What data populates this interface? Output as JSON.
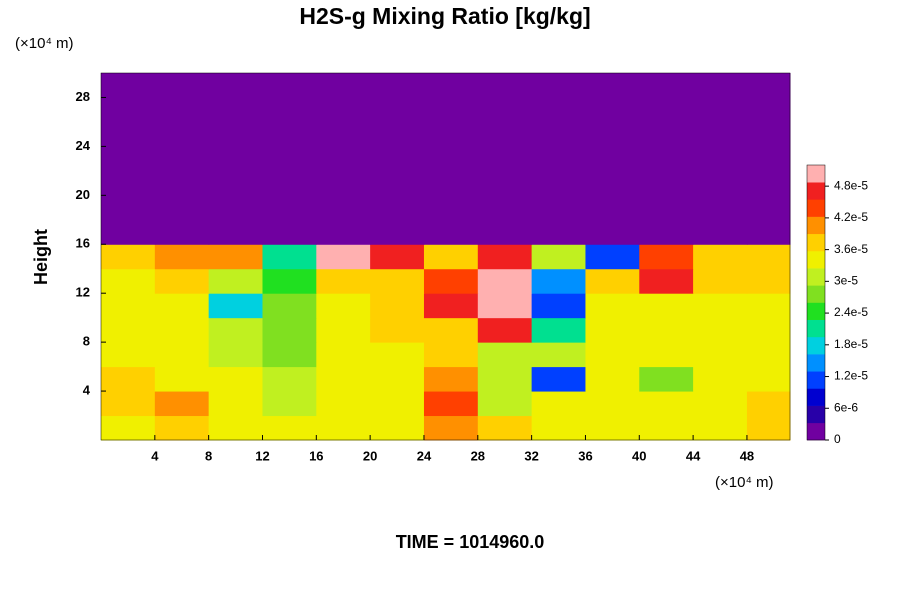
{
  "chart_data": {
    "type": "contour",
    "title": "H2S-g Mixing Ratio [kg/kg]",
    "y_unit_label": "(×10⁴ m)",
    "x_unit_label": "(×10⁴ m)",
    "ylabel": "Height",
    "footer": "TIME = 1014960.0",
    "x_edges": [
      0,
      4,
      8,
      12,
      16,
      20,
      24,
      28,
      32,
      36,
      40,
      44,
      48,
      51.2
    ],
    "y_edges": [
      0,
      2,
      4,
      6,
      8,
      10,
      12,
      14,
      16,
      30
    ],
    "values": [
      [
        3.4e-05,
        3.8e-05,
        3.5e-05,
        3.3e-05,
        3.4e-05,
        3.5e-05,
        4.2e-05,
        3.8e-05,
        3.5e-05,
        3.4e-05,
        3.5e-05,
        3.5e-05,
        3.6e-05
      ],
      [
        3.8e-05,
        3.9e-05,
        3.5e-05,
        3.2e-05,
        3.4e-05,
        3.5e-05,
        4.5e-05,
        3e-05,
        3.4e-05,
        3.4e-05,
        3.5e-05,
        3.4e-05,
        3.8e-05
      ],
      [
        3.6e-05,
        3.5e-05,
        3.3e-05,
        3e-05,
        3.4e-05,
        3.5e-05,
        4e-05,
        3.2e-05,
        1.2e-05,
        3.4e-05,
        2.8e-05,
        3.4e-05,
        3.5e-05
      ],
      [
        3.5e-05,
        3.4e-05,
        3.2e-05,
        2.8e-05,
        3.3e-05,
        3.5e-05,
        3.6e-05,
        3e-05,
        3.2e-05,
        3.5e-05,
        3.4e-05,
        3.3e-05,
        3.3e-05
      ],
      [
        3.4e-05,
        3.4e-05,
        3e-05,
        2.6e-05,
        3.4e-05,
        3.6e-05,
        3.6e-05,
        4.8e-05,
        2e-05,
        3.3e-05,
        3.4e-05,
        3.4e-05,
        3.4e-05
      ],
      [
        3.4e-05,
        3.5e-05,
        1.8e-05,
        2.6e-05,
        3.5e-05,
        3.6e-05,
        4.6e-05,
        5e-05,
        1e-05,
        3.4e-05,
        3.4e-05,
        3.5e-05,
        3.4e-05
      ],
      [
        3.5e-05,
        3.6e-05,
        3e-05,
        2.4e-05,
        3.6e-05,
        3.8e-05,
        4.4e-05,
        5e-05,
        1.4e-05,
        3.6e-05,
        4.8e-05,
        3.8e-05,
        3.6e-05
      ],
      [
        3.6e-05,
        4e-05,
        4e-05,
        2.2e-05,
        5e-05,
        4.6e-05,
        3.8e-05,
        4.6e-05,
        3e-05,
        1e-05,
        4.4e-05,
        3.6e-05,
        3.6e-05
      ],
      [
        0,
        0,
        0,
        0,
        0,
        0,
        0,
        0,
        0,
        0,
        0,
        0,
        0
      ]
    ],
    "xlim": [
      0,
      51.2
    ],
    "ylim": [
      0,
      30
    ],
    "xticks": [
      4,
      8,
      12,
      16,
      20,
      24,
      28,
      32,
      36,
      40,
      44,
      48
    ],
    "yticks": [
      4,
      8,
      12,
      16,
      20,
      24,
      28
    ],
    "clim": [
      0,
      5.2e-05
    ],
    "colors": [
      "#7000a0",
      "#2800a8",
      "#0000d0",
      "#0040ff",
      "#0090ff",
      "#00d0e0",
      "#00e090",
      "#20e020",
      "#80e020",
      "#c0f020",
      "#f0f000",
      "#ffd000",
      "#ff9000",
      "#ff4000",
      "#f02020",
      "#ffb0b0"
    ],
    "cticks": [
      0,
      {
        "value": 6e-06,
        "label": "6e-6"
      },
      {
        "value": 1.2e-05,
        "label": "1.2e-5"
      },
      {
        "value": 1.8e-05,
        "label": "1.8e-5"
      },
      {
        "value": 2.4e-05,
        "label": "2.4e-5"
      },
      {
        "value": 3e-05,
        "label": "3e-5"
      },
      {
        "value": 3.6e-05,
        "label": "3.6e-5"
      },
      {
        "value": 4.2e-05,
        "label": "4.2e-5"
      },
      {
        "value": 4.8e-05,
        "label": "4.8e-5"
      }
    ]
  }
}
